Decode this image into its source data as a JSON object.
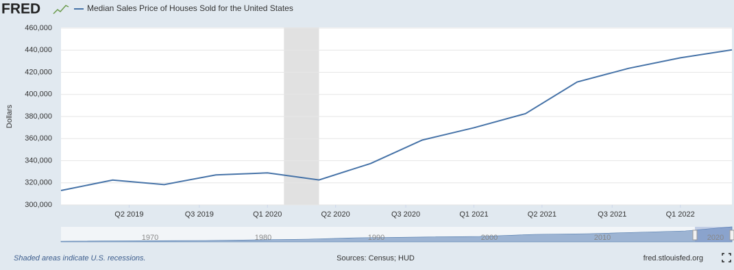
{
  "logo": "FRED",
  "chart_data": {
    "type": "line",
    "title": "Median Sales Price of Houses Sold for the United States",
    "y_label": "Dollars",
    "x": [
      2019.0,
      2019.25,
      2019.5,
      2019.75,
      2020.0,
      2020.25,
      2020.5,
      2020.75,
      2021.0,
      2021.25,
      2021.5,
      2021.75,
      2022.0,
      2022.25
    ],
    "series": [
      {
        "name": "Median Sales Price of Houses Sold for the United States",
        "color": "#4572a7",
        "values": [
          313000,
          322500,
          318400,
          327100,
          329000,
          322600,
          337500,
          358700,
          369800,
          382600,
          411200,
          423600,
          433100,
          440300
        ]
      }
    ],
    "xlim": [
      2019.0,
      2022.25
    ],
    "xticks": [
      {
        "value": 2019.33,
        "label": "Q2 2019"
      },
      {
        "value": 2019.67,
        "label": "Q3 2019"
      },
      {
        "value": 2020.0,
        "label": "Q1 2020"
      },
      {
        "value": 2020.33,
        "label": "Q2 2020"
      },
      {
        "value": 2020.67,
        "label": "Q3 2020"
      },
      {
        "value": 2021.0,
        "label": "Q1 2021"
      },
      {
        "value": 2021.33,
        "label": "Q2 2021"
      },
      {
        "value": 2021.67,
        "label": "Q3 2021"
      },
      {
        "value": 2022.0,
        "label": "Q1 2022"
      }
    ],
    "ylim": [
      300000,
      460000
    ],
    "yticks": [
      {
        "value": 300000,
        "label": "300,000"
      },
      {
        "value": 320000,
        "label": "320,000"
      },
      {
        "value": 340000,
        "label": "340,000"
      },
      {
        "value": 360000,
        "label": "360,000"
      },
      {
        "value": 380000,
        "label": "380,000"
      },
      {
        "value": 400000,
        "label": "400,000"
      },
      {
        "value": 420000,
        "label": "420,000"
      },
      {
        "value": 440000,
        "label": "440,000"
      },
      {
        "value": 460000,
        "label": "460,000"
      }
    ],
    "grid": true,
    "recessions": [
      [
        2020.08,
        2020.25
      ]
    ],
    "navigator_labels": [
      "1970",
      "1980",
      "1990",
      "2000",
      "2010",
      "2020"
    ]
  },
  "footer": {
    "note": "Shaded areas indicate U.S. recessions.",
    "source": "Sources: Census; HUD",
    "site": "fred.stlouisfed.org"
  }
}
